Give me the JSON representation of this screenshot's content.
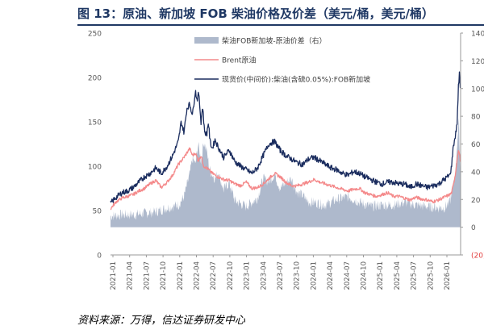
{
  "header": {
    "title": "图 13：原油、新加坡 FOB 柴油价格及价差（美元/桶，美元/桶）"
  },
  "footer": {
    "source": "资料来源：万得，信达证券研发中心"
  },
  "colors": {
    "spread": "#aeb9cc",
    "brent": "#f4898a",
    "diesel": "#1a2c5e",
    "title": "#1f3864",
    "axis": "#9a9a9a",
    "negative": "#e23b3b"
  },
  "chart_data": {
    "type": "line",
    "title": "原油、新加坡 FOB 柴油价格及价差（美元/桶，美元/桶）",
    "xlabel": "",
    "ylabel": "",
    "ylim": [
      0,
      250
    ],
    "y2lim": [
      -20,
      140
    ],
    "y_ticks": [
      "0",
      "50",
      "100",
      "150",
      "200",
      "250"
    ],
    "y2_ticks": [
      "(20)",
      "0",
      "20",
      "40",
      "60",
      "80",
      "100",
      "120",
      "140"
    ],
    "x_ticks": [
      "2021-01",
      "2021-04",
      "2021-07",
      "2021-10",
      "2022-01",
      "2022-04",
      "2022-07",
      "2022-10",
      "2023-01",
      "2023-04",
      "2023-07",
      "2023-10",
      "2024-01",
      "2024-04",
      "2024-07",
      "2024-10",
      "2025-01",
      "2025-04",
      "2025-07",
      "2025-10",
      "2026-01"
    ],
    "legend_position": "top-center",
    "series": [
      {
        "name": "柴油FOB新加坡-原油价差（右）",
        "type": "area",
        "axis": "right",
        "t": [
          0,
          2,
          4,
          6,
          8,
          10,
          12,
          13,
          14,
          14.5,
          15,
          15.5,
          16,
          16.5,
          17,
          17.5,
          18,
          18.5,
          19,
          20,
          21,
          22,
          24,
          26,
          27,
          28,
          29,
          30,
          31,
          32,
          33,
          34,
          35,
          36,
          38,
          40,
          42,
          44,
          46,
          48,
          50,
          52,
          54,
          56,
          58,
          59,
          60,
          60.5,
          61,
          61.3,
          61.6,
          61.9
        ],
        "values": [
          8,
          9,
          9,
          10,
          11,
          14,
          16,
          22,
          38,
          50,
          45,
          60,
          48,
          62,
          55,
          42,
          38,
          35,
          40,
          27,
          32,
          19,
          15,
          21,
          35,
          33,
          38,
          28,
          32,
          35,
          25,
          23,
          18,
          18,
          16,
          20,
          22,
          18,
          15,
          16,
          16,
          18,
          16,
          15,
          14,
          14,
          18,
          28,
          40,
          62,
          75,
          32
        ]
      },
      {
        "name": "Brent原油",
        "type": "line",
        "axis": "left",
        "t": [
          0,
          1,
          2,
          3,
          4,
          5,
          6,
          7,
          8,
          9,
          10,
          11,
          12,
          13,
          14,
          14.5,
          15,
          15.5,
          16,
          16.5,
          17,
          17.5,
          18,
          19,
          20,
          21,
          22,
          23,
          24,
          25,
          26,
          27,
          28,
          29,
          30,
          31,
          32,
          33,
          34,
          35,
          36,
          37,
          38,
          39,
          40,
          41,
          42,
          43,
          44,
          45,
          46,
          47,
          48,
          49,
          50,
          51,
          52,
          53,
          54,
          55,
          56,
          57,
          58,
          59,
          60,
          60.3,
          60.6,
          61,
          61.3,
          61.6,
          61.9
        ],
        "values": [
          52,
          60,
          64,
          66,
          68,
          72,
          75,
          80,
          84,
          76,
          82,
          90,
          102,
          110,
          120,
          112,
          115,
          106,
          112,
          100,
          98,
          95,
          92,
          88,
          85,
          84,
          80,
          78,
          82,
          75,
          76,
          80,
          86,
          92,
          88,
          82,
          78,
          78,
          80,
          82,
          85,
          82,
          80,
          78,
          76,
          74,
          72,
          74,
          75,
          70,
          68,
          66,
          68,
          70,
          66,
          66,
          64,
          62,
          65,
          63,
          62,
          60,
          62,
          65,
          68,
          70,
          78,
          92,
          110,
          118,
          104
        ]
      },
      {
        "name": "现货价(中间价):柴油(含硫0.05%):FOB新加坡",
        "type": "line",
        "axis": "left",
        "t": [
          0,
          1,
          2,
          3,
          4,
          5,
          6,
          7,
          8,
          9,
          10,
          11,
          12,
          12.5,
          13,
          13.5,
          14,
          14.5,
          15,
          15.3,
          15.6,
          16,
          16.3,
          16.6,
          17,
          17.3,
          17.6,
          18,
          18.5,
          19,
          20,
          21,
          22,
          23,
          24,
          25,
          26,
          27,
          28,
          29,
          30,
          31,
          32,
          33,
          34,
          35,
          36,
          37,
          38,
          39,
          40,
          41,
          42,
          43,
          44,
          45,
          46,
          47,
          48,
          49,
          50,
          51,
          52,
          53,
          54,
          55,
          56,
          57,
          58,
          59,
          60,
          60.3,
          60.6,
          61,
          61.3,
          61.5,
          61.7,
          61.9
        ],
        "values": [
          58,
          65,
          70,
          72,
          76,
          82,
          88,
          92,
          98,
          92,
          100,
          112,
          128,
          150,
          138,
          165,
          170,
          158,
          185,
          175,
          182,
          150,
          168,
          140,
          135,
          150,
          128,
          120,
          130,
          122,
          110,
          118,
          105,
          100,
          96,
          92,
          98,
          112,
          125,
          128,
          118,
          112,
          108,
          104,
          102,
          108,
          110,
          106,
          102,
          98,
          96,
          92,
          90,
          94,
          92,
          88,
          85,
          82,
          80,
          82,
          82,
          80,
          80,
          76,
          80,
          78,
          76,
          78,
          80,
          85,
          90,
          100,
          122,
          135,
          150,
          188,
          205,
          182
        ]
      }
    ]
  }
}
